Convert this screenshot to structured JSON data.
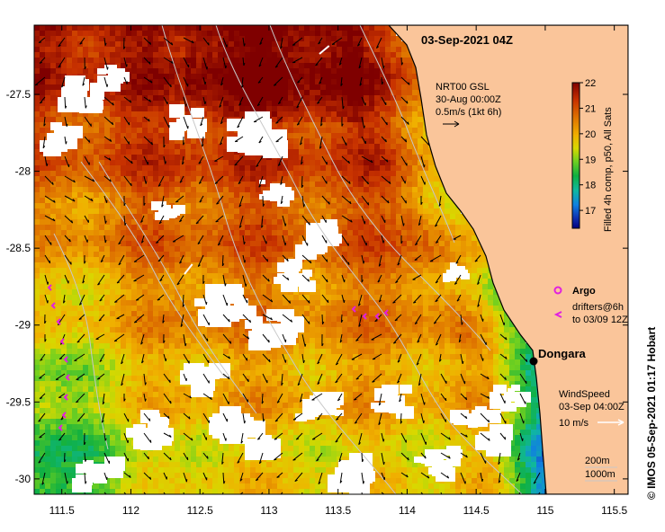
{
  "title": "03-Sep-2021 04Z",
  "axes": {
    "x_ticks": [
      "111.5",
      "112",
      "112.5",
      "113",
      "113.5",
      "114",
      "114.5",
      "115",
      "115.5"
    ],
    "x_values": [
      111.5,
      112,
      112.5,
      113,
      113.5,
      114,
      114.5,
      115,
      115.5
    ],
    "y_ticks": [
      "-27.5",
      "-28",
      "-28.5",
      "-29",
      "-29.5",
      "-30"
    ],
    "y_values": [
      -27.5,
      -28,
      -28.5,
      -29,
      -29.5,
      -30
    ],
    "lon_range": [
      111.3,
      115.6
    ],
    "lat_range": [
      -27.05,
      -30.1
    ]
  },
  "current_legend": {
    "line1": "NRT00 GSL",
    "line2": "30-Aug 00:00Z",
    "line3": "0.5m/s (1kt 6h)"
  },
  "colorbar": {
    "title": "Filled 4h comp, p50, All Sats",
    "ticks": [
      "22",
      "21",
      "20",
      "19",
      "18",
      "17"
    ],
    "tick_values": [
      22,
      21,
      20,
      19,
      18,
      17
    ],
    "range": [
      16.3,
      22
    ]
  },
  "argo": {
    "label": "Argo",
    "drifters_line1": "drifters@6h",
    "drifters_line2": "to 03/09 12Z"
  },
  "city": {
    "name": "Dongara",
    "lon": 114.93,
    "lat": -29.25
  },
  "wind": {
    "line1": "WindSpeed",
    "line2": "03-Sep 04:00Z",
    "line3": "10 m/s"
  },
  "bathymetry": {
    "line1": "200m",
    "line2": "1000m"
  },
  "credit": "© IMOS 05-Sep-2021 01:17 Hobart",
  "colors": {
    "land": "#fac59a",
    "drifter": "#e020e0",
    "contour": "#c8c8c8"
  }
}
